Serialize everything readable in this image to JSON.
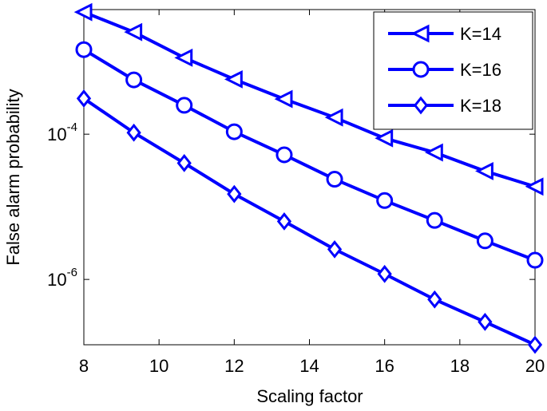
{
  "chart_data": {
    "type": "line",
    "xlabel": "Scaling factor",
    "ylabel": "False alarm probability",
    "x": [
      8,
      9.33,
      10.67,
      12,
      13.33,
      14.67,
      16,
      17.33,
      18.67,
      20
    ],
    "series": [
      {
        "name": "K=14",
        "color": "#0000ff",
        "marker": "triangle-left",
        "values": [
          0.0048,
          0.00255,
          0.00113,
          0.00057,
          0.000305,
          0.00017,
          8.8e-05,
          5.6e-05,
          3.1e-05,
          1.9e-05
        ]
      },
      {
        "name": "K=16",
        "color": "#0000ff",
        "marker": "circle",
        "values": [
          0.00146,
          0.00056,
          0.00025,
          0.000108,
          5.2e-05,
          2.4e-05,
          1.22e-05,
          6.5e-06,
          3.4e-06,
          1.84e-06
        ]
      },
      {
        "name": "K=18",
        "color": "#0000ff",
        "marker": "diamond",
        "values": [
          0.00031,
          0.000105,
          4e-05,
          1.5e-05,
          6.3e-06,
          2.6e-06,
          1.19e-06,
          5.3e-07,
          2.6e-07,
          1.26e-07
        ]
      }
    ],
    "xlim": [
      8,
      20
    ],
    "xticks": [
      8,
      10,
      12,
      14,
      16,
      18,
      20
    ],
    "ylim": [
      1.26e-07,
      0.0052
    ],
    "yticks": [
      {
        "value": 0.0001,
        "label": "10^-4"
      },
      {
        "value": 1e-06,
        "label": "10^-6"
      }
    ],
    "ylog": true,
    "legend": "upper right"
  }
}
